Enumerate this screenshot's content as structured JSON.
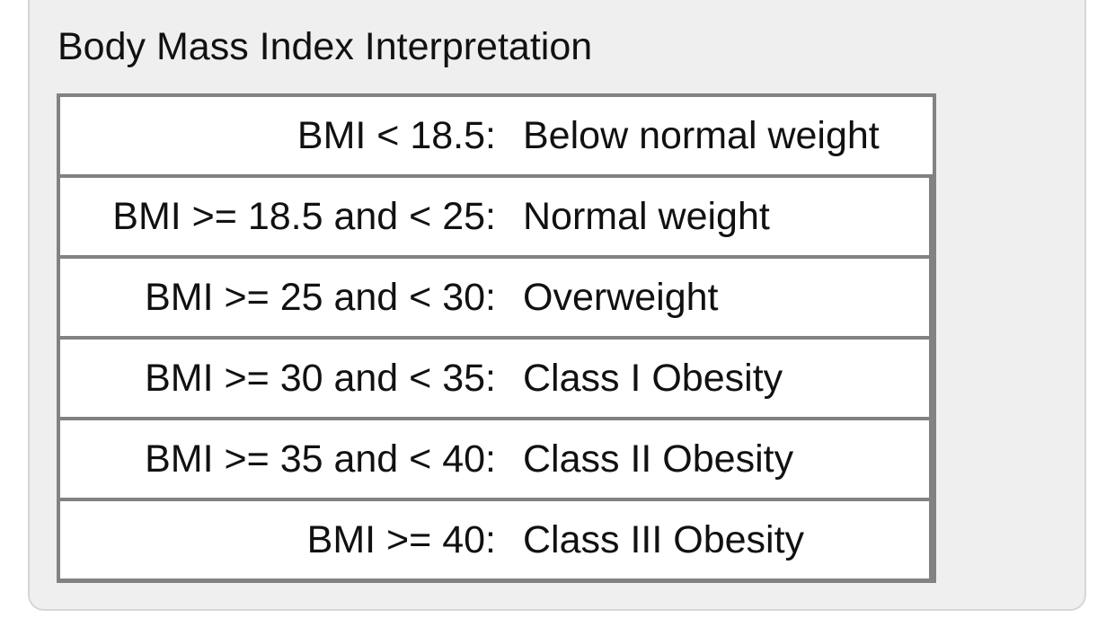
{
  "panel": {
    "title": "Body Mass Index Interpretation"
  },
  "bmi_table": {
    "rows": [
      {
        "condition": "BMI < 18.5:",
        "category": "Below normal weight"
      },
      {
        "condition": "BMI >= 18.5 and < 25:",
        "category": "Normal weight"
      },
      {
        "condition": "BMI >= 25 and < 30:",
        "category": "Overweight"
      },
      {
        "condition": "BMI >= 30 and < 35:",
        "category": "Class I Obesity"
      },
      {
        "condition": "BMI >= 35 and < 40:",
        "category": "Class II Obesity"
      },
      {
        "condition": "BMI >= 40:",
        "category": "Class III Obesity"
      }
    ]
  },
  "colors": {
    "panel_bg": "#efefef",
    "table_border": "#828282",
    "text": "#111111"
  }
}
